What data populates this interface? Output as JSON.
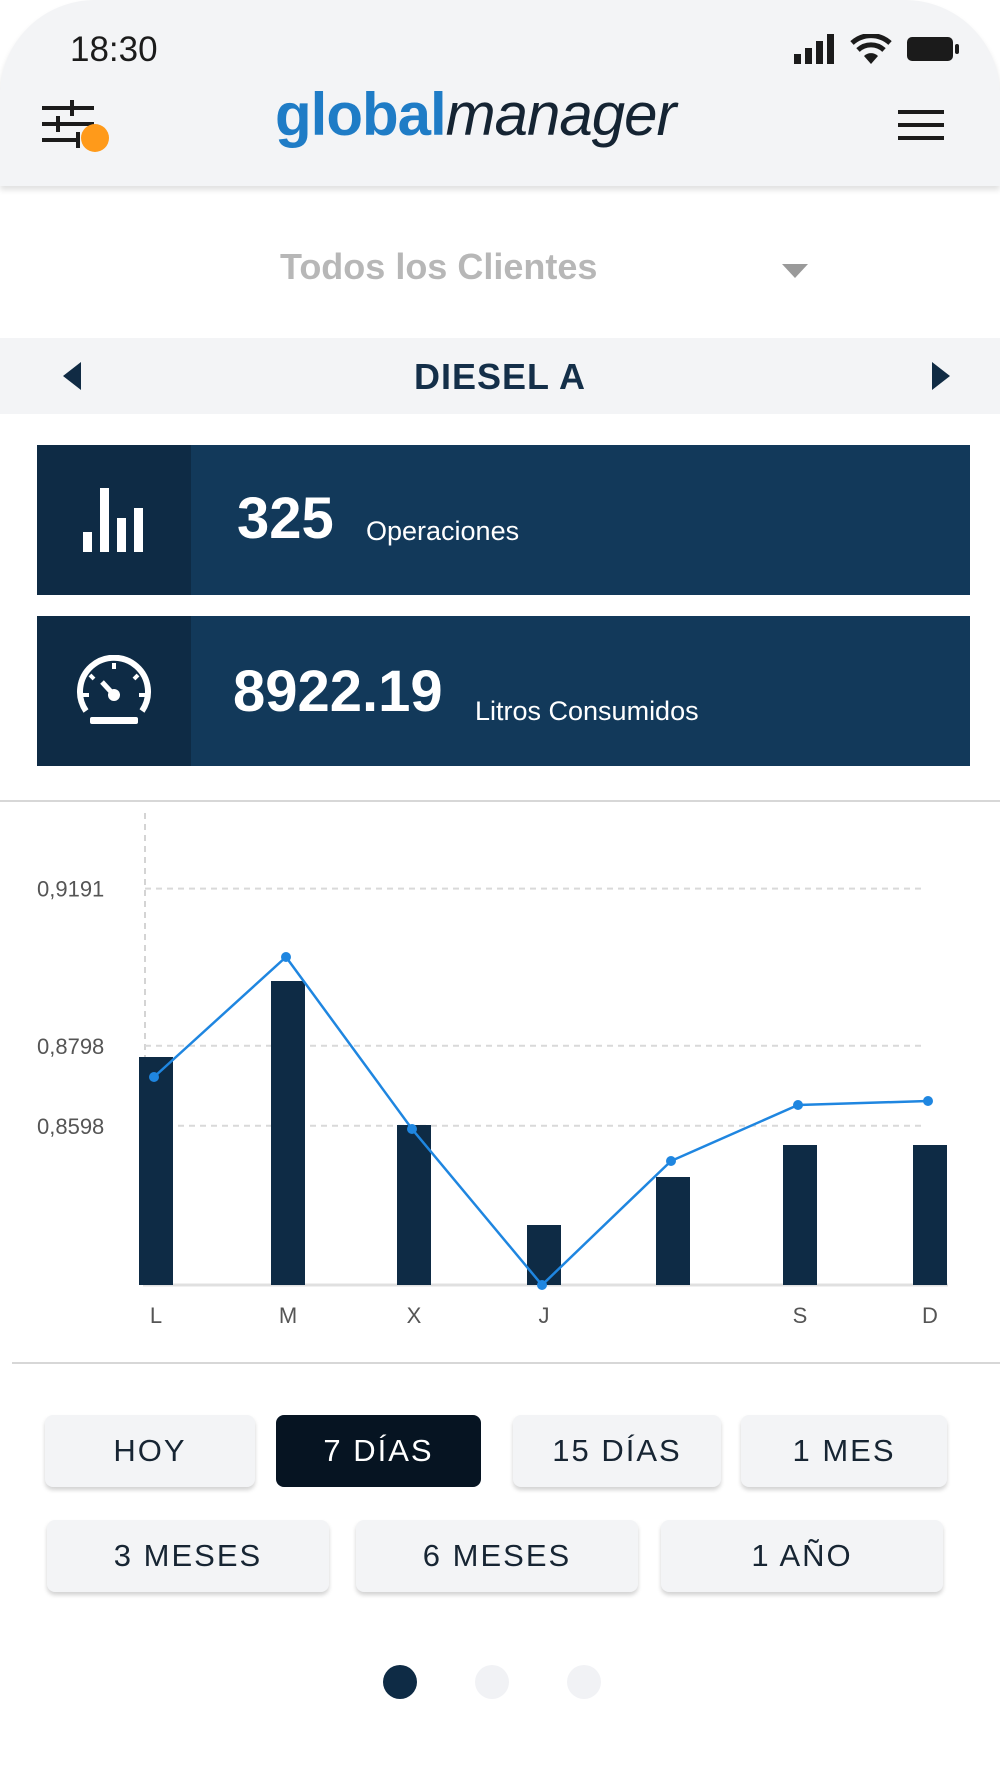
{
  "status_bar": {
    "time": "18:30",
    "signal_icon": "signal-icon",
    "wifi_icon": "wifi-icon",
    "battery_icon": "battery-icon"
  },
  "header": {
    "filter_icon": "sliders-icon",
    "filter_badge_color": "#ff9a1a",
    "logo_part1": "global",
    "logo_part2": "manager",
    "menu_icon": "hamburger-menu-icon"
  },
  "client_filter": {
    "selected": "Todos los Clientes"
  },
  "fuel_selector": {
    "current": "DIESEL A"
  },
  "stats": [
    {
      "icon": "bar-chart-icon",
      "value": "325",
      "unit": "Operaciones"
    },
    {
      "icon": "speedometer-icon",
      "value": "8922.19",
      "unit": "Litros Consumidos"
    }
  ],
  "chart_data": {
    "type": "bar",
    "categories": [
      "L",
      "M",
      "X",
      "J",
      "",
      "S",
      "D"
    ],
    "ytick_labels": [
      "0,9191",
      "0,8798",
      "0,8598"
    ],
    "ytick_values": [
      0.9191,
      0.8798,
      0.8598
    ],
    "series": [
      {
        "type": "bar",
        "color": "#0e2b45",
        "values": [
          0.877,
          0.896,
          0.86,
          0.835,
          0.847,
          0.855,
          0.855
        ]
      },
      {
        "type": "line",
        "color": "#1f86e0",
        "values": [
          0.872,
          0.902,
          0.859,
          0.82,
          0.851,
          0.865,
          0.866
        ]
      }
    ],
    "ylim": [
      0.82,
      0.935
    ],
    "grid": true
  },
  "range_buttons": {
    "row1": [
      {
        "label": "HOY",
        "active": false
      },
      {
        "label": "7 DÍAS",
        "active": true
      },
      {
        "label": "15 DÍAS",
        "active": false
      },
      {
        "label": "1 MES",
        "active": false
      }
    ],
    "row2": [
      {
        "label": "3 MESES",
        "active": false
      },
      {
        "label": "6 MESES",
        "active": false
      },
      {
        "label": "1 AÑO",
        "active": false
      }
    ]
  },
  "pagination": {
    "pages": 3,
    "current": 1
  }
}
